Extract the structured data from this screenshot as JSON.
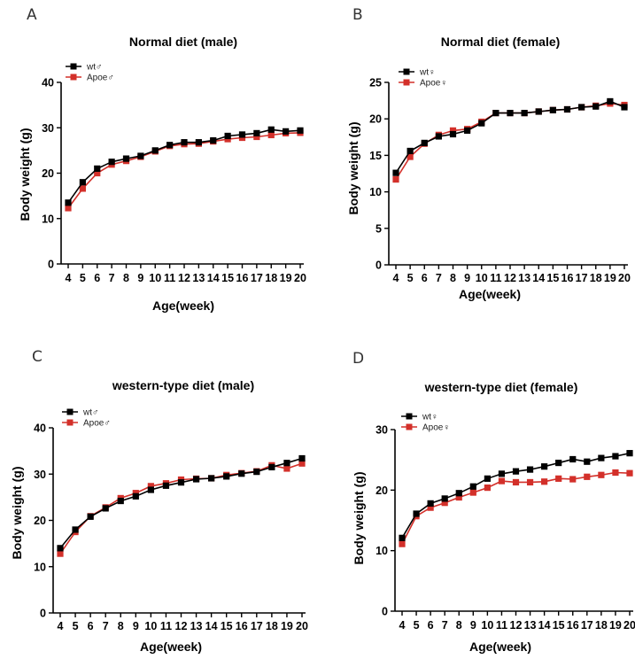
{
  "chart_data": [
    {
      "panel": "A",
      "type": "line",
      "title": "Normal diet (male)",
      "xlabel": "Age(week)",
      "ylabel": "Body weight (g)",
      "x": [
        4,
        5,
        6,
        7,
        8,
        9,
        10,
        11,
        12,
        13,
        14,
        15,
        16,
        17,
        18,
        19,
        20
      ],
      "ylim": [
        0,
        40
      ],
      "yticks": [
        0,
        10,
        20,
        30,
        40
      ],
      "legend_position": "top-left",
      "grid": false,
      "series": [
        {
          "name": "wt♂",
          "color": "#000000",
          "values": [
            13.5,
            18.0,
            21.0,
            22.5,
            23.2,
            23.8,
            25.0,
            26.2,
            26.8,
            26.8,
            27.2,
            28.2,
            28.5,
            28.8,
            29.6,
            29.2,
            29.4
          ]
        },
        {
          "name": "Apoe♂",
          "color": "#d3302a",
          "values": [
            12.3,
            16.6,
            20.0,
            21.9,
            22.7,
            23.6,
            24.8,
            26.0,
            26.4,
            26.5,
            27.0,
            27.5,
            27.8,
            28.0,
            28.4,
            28.8,
            28.9
          ]
        }
      ]
    },
    {
      "panel": "B",
      "type": "line",
      "title": "Normal diet (female)",
      "xlabel": "Age(week)",
      "ylabel": "Body weight (g)",
      "x": [
        4,
        5,
        6,
        7,
        8,
        9,
        10,
        11,
        12,
        13,
        14,
        15,
        16,
        17,
        18,
        19,
        20
      ],
      "ylim": [
        0,
        25
      ],
      "yticks": [
        0,
        5,
        10,
        15,
        20,
        25
      ],
      "legend_position": "top-left",
      "grid": false,
      "series": [
        {
          "name": "wt♀",
          "color": "#000000",
          "values": [
            12.6,
            15.6,
            16.7,
            17.6,
            17.9,
            18.4,
            19.4,
            20.8,
            20.8,
            20.8,
            21.0,
            21.2,
            21.3,
            21.6,
            21.7,
            22.4,
            21.6
          ]
        },
        {
          "name": "Apoe♀",
          "color": "#d3302a",
          "values": [
            11.7,
            14.8,
            16.6,
            17.8,
            18.4,
            18.6,
            19.6,
            20.8,
            20.8,
            20.8,
            21.0,
            21.2,
            21.3,
            21.6,
            21.8,
            22.1,
            21.9
          ]
        }
      ]
    },
    {
      "panel": "C",
      "type": "line",
      "title": "western-type diet (male)",
      "xlabel": "Age(week)",
      "ylabel": "Body weight (g)",
      "x": [
        4,
        5,
        6,
        7,
        8,
        9,
        10,
        11,
        12,
        13,
        14,
        15,
        16,
        17,
        18,
        19,
        20
      ],
      "ylim": [
        0,
        40
      ],
      "yticks": [
        0,
        10,
        20,
        30,
        40
      ],
      "legend_position": "top-left",
      "grid": false,
      "series": [
        {
          "name": "wt♂",
          "color": "#000000",
          "values": [
            14.0,
            18.0,
            20.8,
            22.6,
            24.2,
            25.2,
            26.6,
            27.5,
            28.2,
            28.9,
            29.1,
            29.5,
            30.1,
            30.5,
            31.5,
            32.4,
            33.4
          ]
        },
        {
          "name": "Apoe♂",
          "color": "#d3302a",
          "values": [
            12.8,
            17.5,
            20.9,
            22.8,
            24.8,
            25.9,
            27.4,
            28.0,
            28.8,
            29.0,
            29.1,
            29.8,
            30.2,
            30.6,
            31.9,
            31.2,
            32.3
          ]
        }
      ]
    },
    {
      "panel": "D",
      "type": "line",
      "title": "western-type diet (female)",
      "xlabel": "Age(week)",
      "ylabel": "Body weight (g)",
      "x": [
        4,
        5,
        6,
        7,
        8,
        9,
        10,
        11,
        12,
        13,
        14,
        15,
        16,
        17,
        18,
        19,
        20
      ],
      "ylim": [
        0,
        30
      ],
      "yticks": [
        0,
        10,
        20,
        30
      ],
      "legend_position": "top-left",
      "grid": false,
      "series": [
        {
          "name": "wt♀",
          "color": "#000000",
          "values": [
            12.1,
            16.1,
            17.8,
            18.6,
            19.5,
            20.6,
            21.9,
            22.7,
            23.1,
            23.4,
            23.9,
            24.5,
            25.1,
            24.7,
            25.3,
            25.6,
            26.1
          ]
        },
        {
          "name": "Apoe♀",
          "color": "#d3302a",
          "values": [
            11.1,
            15.7,
            17.1,
            17.9,
            18.8,
            19.6,
            20.4,
            21.5,
            21.3,
            21.3,
            21.4,
            21.9,
            21.8,
            22.2,
            22.5,
            22.9,
            22.8
          ]
        }
      ]
    }
  ]
}
